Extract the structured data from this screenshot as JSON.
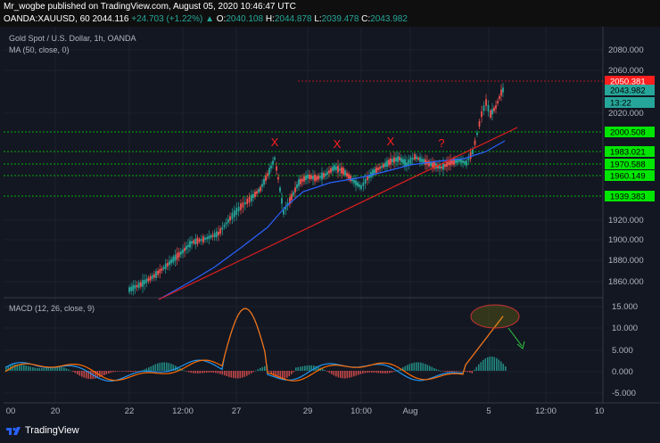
{
  "header": {
    "publisher_line_user": "Mr_wogbe",
    "publisher_line_text": " published on TradingView.com, August 05, 2020 10:46:47 UTC",
    "symbol": "OANDA:XAUUSD, 60",
    "last_price": "2044.116",
    "change": "+24.703 (+1.22%)",
    "change_arrow": "▲",
    "o_label": "O:",
    "o_value": "2040.108",
    "h_label": "H:",
    "h_value": "2044.878",
    "l_label": "L:",
    "l_value": "2039.478",
    "c_label": "C:",
    "c_value": "2043.982"
  },
  "main_panel": {
    "title": "Gold Spot / U.S. Dollar, 1h, OANDA",
    "indicator": "MA (50, close, 0)",
    "price_axis": [
      "2080.000",
      "2060.000",
      "2020.000",
      "1920.000",
      "1900.000",
      "1880.000",
      "1860.000"
    ],
    "price_tags": [
      {
        "text": "2050.381",
        "color": "#ff1e1e"
      },
      {
        "text": "2043.982",
        "color": "#26a69a"
      },
      {
        "text": "13:22",
        "color": "#26a69a"
      },
      {
        "text": "2000.508",
        "color": "#00e600"
      },
      {
        "text": "1983.021",
        "color": "#00e600"
      },
      {
        "text": "1970.588",
        "color": "#00e600"
      },
      {
        "text": "1960.149",
        "color": "#00e600"
      },
      {
        "text": "1939.383",
        "color": "#00e600"
      }
    ],
    "annotations": [
      "X",
      "X",
      "X",
      "?"
    ]
  },
  "macd_panel": {
    "title": "MACD (12, 26, close, 9)",
    "axis": [
      "15.000",
      "10.000",
      "5.000",
      "0.000",
      "-5.000"
    ]
  },
  "time_axis": [
    "00",
    "20",
    "22",
    "12:00",
    "27",
    "29",
    "10:00",
    "Aug",
    "5",
    "12:00",
    "10"
  ],
  "footer": {
    "brand": "TradingView"
  },
  "colors": {
    "background": "#131722",
    "up": "#26a69a",
    "down": "#ef5350",
    "ma": "#2962ff",
    "trendline": "#e01e1e",
    "level": "#00e600",
    "macd_line": "#2196f3",
    "signal_line": "#ff6d00"
  }
}
